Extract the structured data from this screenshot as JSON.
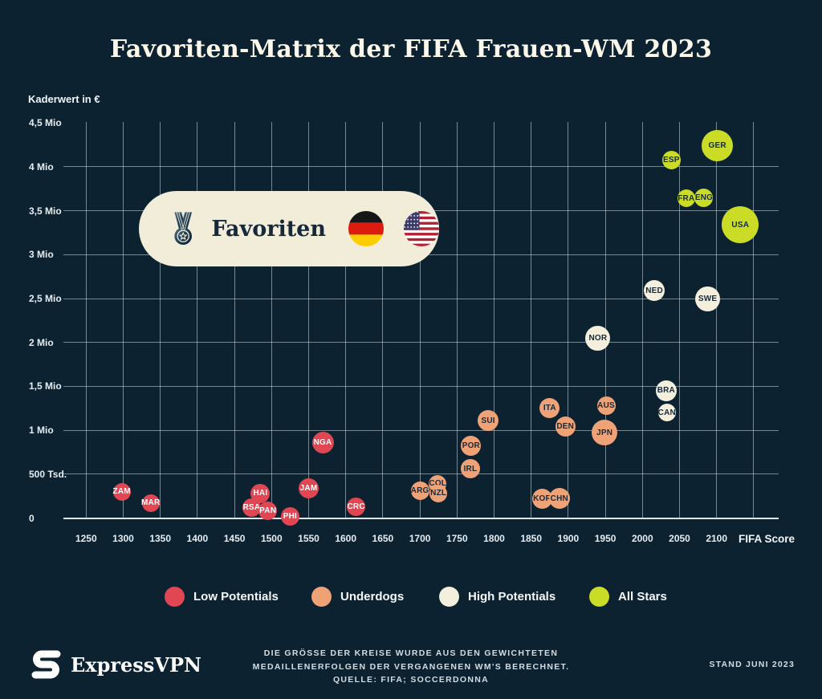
{
  "title": "Favoriten-Matrix der FIFA Frauen-WM 2023",
  "annotation": {
    "label": "Favoriten",
    "flags": [
      "germany",
      "usa"
    ]
  },
  "footer": {
    "brand": "ExpressVPN",
    "note_lines": [
      "DIE GRÖSSE DER KREISE WURDE AUS DEN GEWICHTETEN",
      "MEDAILLENERFOLGEN DER VERGANGENEN WM'S BERECHNET.",
      "QUELLE: FIFA; SOCCERDONNA"
    ],
    "stand": "STAND JUNI 2023"
  },
  "colors": {
    "background": "#0d2231",
    "title": "#fcf8ea",
    "grid": "rgba(226,236,241,0.5)",
    "axis_line": "#dce6eb",
    "tick_text": "#e6edf1",
    "low_potentials": "#e04753",
    "underdogs": "#f0a277",
    "high_potentials": "#f4efdc",
    "all_stars": "#cbdc27",
    "badge_background": "#f2edd9",
    "badge_text": "#15293b"
  },
  "chart_data": {
    "type": "scatter",
    "title": "Favoriten-Matrix der FIFA Frauen-WM 2023",
    "xlabel": "FIFA Score",
    "ylabel": "Kaderwert in €",
    "x_range": [
      1250,
      2150
    ],
    "x_ticks": [
      1250,
      1300,
      1350,
      1400,
      1450,
      1500,
      1550,
      1600,
      1650,
      1700,
      1750,
      1800,
      1850,
      1900,
      1950,
      2000,
      2050,
      2100
    ],
    "y_range_mio": [
      0,
      4.5
    ],
    "y_ticks": [
      {
        "value": 0,
        "label": "0"
      },
      {
        "value": 0.5,
        "label": "500 Tsd."
      },
      {
        "value": 1,
        "label": "1 Mio"
      },
      {
        "value": 1.5,
        "label": "1,5 Mio"
      },
      {
        "value": 2,
        "label": "2 Mio"
      },
      {
        "value": 2.5,
        "label": "2,5 Mio"
      },
      {
        "value": 3,
        "label": "3 Mio"
      },
      {
        "value": 3.5,
        "label": "3,5 Mio"
      },
      {
        "value": 4,
        "label": "4 Mio"
      },
      {
        "value": 4.5,
        "label": "4,5 Mio"
      }
    ],
    "grid": true,
    "legend_position": "bottom",
    "categories": [
      {
        "key": "low",
        "label": "Low Potentials",
        "color": "#e04753",
        "text_color": "#ffffff"
      },
      {
        "key": "underdog",
        "label": "Underdogs",
        "color": "#f0a277",
        "text_color": "#14293a"
      },
      {
        "key": "high",
        "label": "High Potentials",
        "color": "#f4efdc",
        "text_color": "#14293a"
      },
      {
        "key": "allstar",
        "label": "All Stars",
        "color": "#cbdc27",
        "text_color": "#14293a"
      }
    ],
    "teams": [
      {
        "code": "ZAM",
        "category": "low",
        "fifa_score": 1298,
        "value_mio": 0.3,
        "radius_px": 11
      },
      {
        "code": "MAR",
        "category": "low",
        "fifa_score": 1337,
        "value_mio": 0.17,
        "radius_px": 11
      },
      {
        "code": "RSA",
        "category": "low",
        "fifa_score": 1473,
        "value_mio": 0.12,
        "radius_px": 11.5
      },
      {
        "code": "HAI",
        "category": "low",
        "fifa_score": 1485,
        "value_mio": 0.28,
        "radius_px": 12
      },
      {
        "code": "PAN",
        "category": "low",
        "fifa_score": 1495,
        "value_mio": 0.08,
        "radius_px": 11.5
      },
      {
        "code": "PHI",
        "category": "low",
        "fifa_score": 1525,
        "value_mio": 0.02,
        "radius_px": 11.5
      },
      {
        "code": "JAM",
        "category": "low",
        "fifa_score": 1550,
        "value_mio": 0.34,
        "radius_px": 12.5
      },
      {
        "code": "NGA",
        "category": "low",
        "fifa_score": 1569,
        "value_mio": 0.86,
        "radius_px": 13.5
      },
      {
        "code": "CRC",
        "category": "low",
        "fifa_score": 1614,
        "value_mio": 0.13,
        "radius_px": 11.5
      },
      {
        "code": "ARG",
        "category": "underdog",
        "fifa_score": 1700,
        "value_mio": 0.31,
        "radius_px": 11.5
      },
      {
        "code": "COL",
        "category": "underdog",
        "fifa_score": 1724,
        "value_mio": 0.39,
        "radius_px": 11
      },
      {
        "code": "NZL",
        "category": "underdog",
        "fifa_score": 1725,
        "value_mio": 0.28,
        "radius_px": 11
      },
      {
        "code": "IRL",
        "category": "underdog",
        "fifa_score": 1768,
        "value_mio": 0.56,
        "radius_px": 12
      },
      {
        "code": "POR",
        "category": "underdog",
        "fifa_score": 1769,
        "value_mio": 0.82,
        "radius_px": 12.5
      },
      {
        "code": "SUI",
        "category": "underdog",
        "fifa_score": 1792,
        "value_mio": 1.11,
        "radius_px": 13
      },
      {
        "code": "KOR",
        "category": "underdog",
        "fifa_score": 1865,
        "value_mio": 0.22,
        "radius_px": 12.5
      },
      {
        "code": "ITA",
        "category": "underdog",
        "fifa_score": 1875,
        "value_mio": 1.25,
        "radius_px": 12.5
      },
      {
        "code": "CHN",
        "category": "underdog",
        "fifa_score": 1888,
        "value_mio": 0.22,
        "radius_px": 13
      },
      {
        "code": "DEN",
        "category": "underdog",
        "fifa_score": 1896,
        "value_mio": 1.04,
        "radius_px": 12.5
      },
      {
        "code": "JPN",
        "category": "underdog",
        "fifa_score": 1949,
        "value_mio": 0.97,
        "radius_px": 16
      },
      {
        "code": "AUS",
        "category": "underdog",
        "fifa_score": 1951,
        "value_mio": 1.28,
        "radius_px": 11.5
      },
      {
        "code": "NOR",
        "category": "high",
        "fifa_score": 1940,
        "value_mio": 2.05,
        "radius_px": 15.5
      },
      {
        "code": "NED",
        "category": "high",
        "fifa_score": 2016,
        "value_mio": 2.59,
        "radius_px": 13
      },
      {
        "code": "BRA",
        "category": "high",
        "fifa_score": 2032,
        "value_mio": 1.45,
        "radius_px": 13
      },
      {
        "code": "CAN",
        "category": "high",
        "fifa_score": 2033,
        "value_mio": 1.2,
        "radius_px": 11
      },
      {
        "code": "SWE",
        "category": "high",
        "fifa_score": 2088,
        "value_mio": 2.5,
        "radius_px": 15.5
      },
      {
        "code": "ESP",
        "category": "allstar",
        "fifa_score": 2039,
        "value_mio": 4.08,
        "radius_px": 11.5
      },
      {
        "code": "FRA",
        "category": "allstar",
        "fifa_score": 2059,
        "value_mio": 3.64,
        "radius_px": 11
      },
      {
        "code": "ENG",
        "category": "allstar",
        "fifa_score": 2083,
        "value_mio": 3.65,
        "radius_px": 11.5
      },
      {
        "code": "GER",
        "category": "allstar",
        "fifa_score": 2101,
        "value_mio": 4.24,
        "radius_px": 19.5
      },
      {
        "code": "USA",
        "category": "allstar",
        "fifa_score": 2132,
        "value_mio": 3.34,
        "radius_px": 23
      }
    ]
  }
}
